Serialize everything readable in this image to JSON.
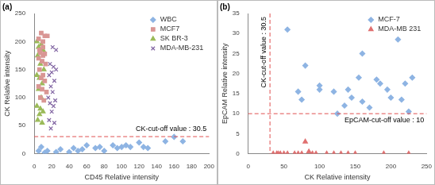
{
  "chart_data": [
    {
      "type": "scatter",
      "title": "(a)",
      "x_label": "CD45 Relative intensity",
      "y_label": "CK Relative intensity",
      "xlim": [
        0,
        200
      ],
      "xticks": [
        0,
        20,
        40,
        60,
        80,
        100,
        120,
        140,
        160,
        180,
        200
      ],
      "ylim": [
        0,
        250
      ],
      "yticks": [
        0,
        50,
        100,
        150,
        200,
        250
      ],
      "grid": false,
      "legend": "top-right",
      "series": [
        {
          "name": "WBC",
          "color": "#8eb4e3",
          "marker": "diamond",
          "x": [
            5,
            8,
            12,
            15,
            25,
            30,
            40,
            45,
            50,
            55,
            60,
            70,
            75,
            80,
            90,
            95,
            100,
            105,
            110,
            120,
            125,
            130,
            150,
            160,
            170
          ],
          "values": [
            5,
            12,
            2,
            5,
            3,
            8,
            3,
            10,
            5,
            8,
            15,
            10,
            12,
            5,
            15,
            10,
            12,
            15,
            12,
            20,
            12,
            10,
            22,
            30,
            22
          ]
        },
        {
          "name": "MCF7",
          "color": "#d99694",
          "marker": "square",
          "x": [
            8,
            12,
            5,
            10,
            15,
            7,
            10,
            12,
            5,
            9,
            13,
            6,
            10,
            8,
            12,
            5,
            9,
            14,
            7,
            11,
            6,
            10
          ],
          "values": [
            215,
            210,
            205,
            200,
            210,
            180,
            175,
            178,
            170,
            165,
            160,
            150,
            140,
            135,
            130,
            120,
            115,
            110,
            100,
            95,
            185,
            190
          ]
        },
        {
          "name": "SK BR-3",
          "color": "#9bbb59",
          "marker": "triangle",
          "x": [
            3,
            8,
            5,
            10,
            4,
            7,
            11,
            3,
            6,
            9,
            5,
            8,
            3,
            7,
            10,
            4,
            9,
            6
          ],
          "values": [
            200,
            195,
            190,
            185,
            175,
            160,
            150,
            140,
            135,
            125,
            115,
            100,
            85,
            80,
            75,
            60,
            55,
            70
          ]
        },
        {
          "name": "MDA-MB-231",
          "color": "#8064a2",
          "marker": "x",
          "x": [
            18,
            22,
            25,
            20,
            17,
            23,
            19,
            21,
            16,
            24,
            18,
            22,
            20,
            17,
            23,
            19,
            21,
            25
          ],
          "values": [
            160,
            155,
            150,
            145,
            140,
            130,
            120,
            110,
            100,
            95,
            90,
            85,
            75,
            60,
            55,
            45,
            190,
            185
          ]
        }
      ],
      "annotations": [
        {
          "text": "CK-cut-off value : 30.5",
          "axis": "y",
          "value": 30.5,
          "color": "#e05050",
          "line_style": "dashed"
        }
      ]
    },
    {
      "type": "scatter",
      "title": "(b)",
      "x_label": "CK Relative intensity",
      "y_label": "EpCAM Relative intensity",
      "xlim": [
        0,
        250
      ],
      "xticks": [
        0,
        50,
        100,
        150,
        200,
        250
      ],
      "ylim": [
        0,
        35
      ],
      "yticks": [
        0,
        5,
        10,
        15,
        20,
        25,
        30,
        35
      ],
      "grid": false,
      "legend": "top-right",
      "series": [
        {
          "name": "MCF-7",
          "color": "#8eb4e3",
          "marker": "diamond",
          "x": [
            55,
            80,
            70,
            75,
            100,
            100,
            120,
            125,
            135,
            140,
            145,
            155,
            160,
            160,
            170,
            180,
            185,
            195,
            200,
            210,
            215,
            220,
            225,
            230
          ],
          "values": [
            31,
            22,
            15.5,
            13.5,
            17,
            16,
            15.5,
            10,
            12,
            16,
            14,
            19,
            25,
            13,
            11.5,
            18.5,
            17.5,
            16,
            14,
            28.5,
            13.5,
            17.5,
            10.5,
            19
          ]
        },
        {
          "name": "MDA-MB 231",
          "color": "#e07070",
          "marker": "triangle",
          "x": [
            35,
            40,
            42,
            45,
            50,
            55,
            65,
            70,
            75,
            80,
            85,
            90,
            95,
            110,
            120,
            130,
            140,
            150,
            190,
            225
          ],
          "values": [
            0,
            0,
            0,
            0,
            0,
            0,
            0,
            0,
            0,
            3,
            0.5,
            0,
            0,
            0,
            0,
            0,
            0,
            0,
            0,
            0
          ]
        }
      ],
      "annotations": [
        {
          "text": "CK-cut-off value : 30.5",
          "axis": "x",
          "value": 30.5,
          "color": "#e05050",
          "line_style": "dashed"
        },
        {
          "text": "EpCAM-cut-off value : 10",
          "axis": "y",
          "value": 10,
          "color": "#e05050",
          "line_style": "dashed"
        }
      ]
    }
  ]
}
